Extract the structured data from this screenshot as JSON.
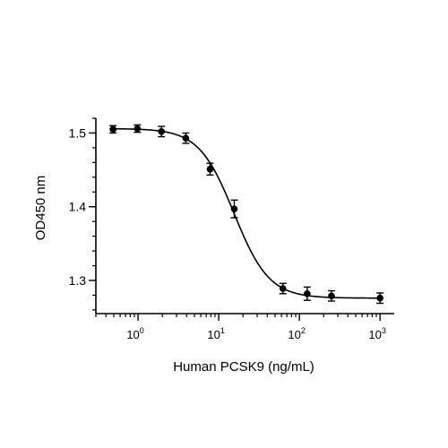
{
  "chart_data": {
    "type": "scatter",
    "xlabel": "Human PCSK9 (ng/mL)",
    "ylabel": "OD450 nm",
    "x_scale": "log",
    "xlim": [
      0.3,
      1500
    ],
    "ylim": [
      1.255,
      1.52
    ],
    "x_ticks": [
      {
        "value": 1,
        "base": "10",
        "exp": "0"
      },
      {
        "value": 10,
        "base": "10",
        "exp": "1"
      },
      {
        "value": 100,
        "base": "10",
        "exp": "2"
      },
      {
        "value": 1000,
        "base": "10",
        "exp": "3"
      }
    ],
    "y_ticks": [
      {
        "value": 1.3,
        "label": "1.3"
      },
      {
        "value": 1.4,
        "label": "1.4"
      },
      {
        "value": 1.5,
        "label": "1.5"
      }
    ],
    "series": [
      {
        "x": [
          0.49,
          0.98,
          1.95,
          3.91,
          7.81,
          15.6,
          62.5,
          125,
          250,
          1000
        ],
        "y": [
          1.505,
          1.506,
          1.502,
          1.493,
          1.451,
          1.397,
          1.289,
          1.282,
          1.279,
          1.276
        ],
        "error": [
          0.005,
          0.005,
          0.007,
          0.007,
          0.008,
          0.012,
          0.007,
          0.009,
          0.007,
          0.007
        ]
      }
    ],
    "fit_curve": {
      "top": 1.506,
      "bottom": 1.276,
      "ec50": 15.5,
      "hill": 2.0
    },
    "grid": false,
    "legend": "none"
  }
}
